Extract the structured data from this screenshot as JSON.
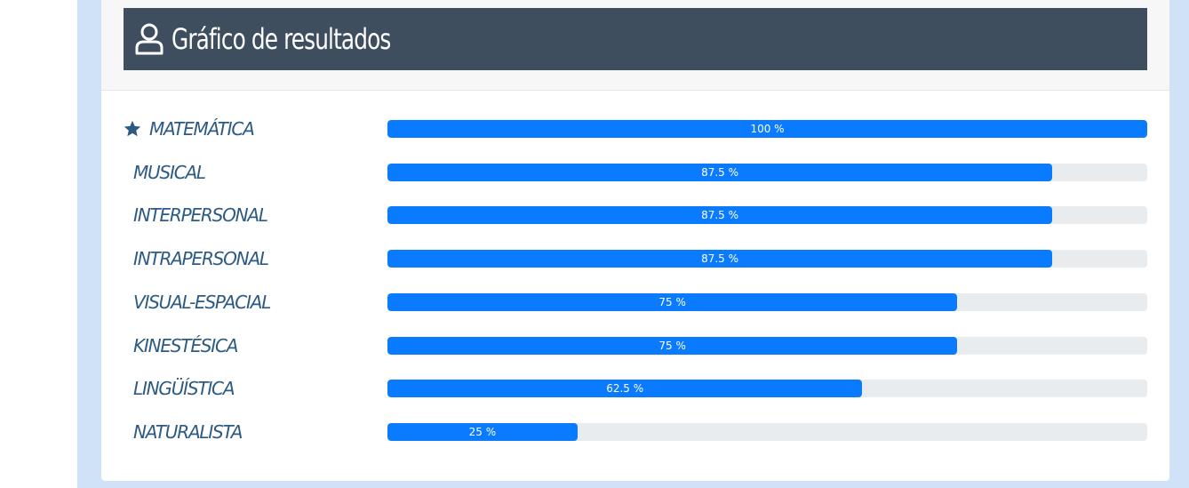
{
  "header": {
    "title": "Gráfico de resultados",
    "icon": "user-outline-icon"
  },
  "colors": {
    "bar": "#0a7bff",
    "track": "#e9ecef",
    "label": "#2c5a85",
    "title_bg": "#3e4e5e",
    "page_bg": "#cfe2f8"
  },
  "results": [
    {
      "label": "MATEMÁTICA",
      "percent": 100,
      "percent_text": "100 %",
      "starred": true
    },
    {
      "label": "MUSICAL",
      "percent": 87.5,
      "percent_text": "87.5 %",
      "starred": false
    },
    {
      "label": "INTERPERSONAL",
      "percent": 87.5,
      "percent_text": "87.5 %",
      "starred": false
    },
    {
      "label": "INTRAPERSONAL",
      "percent": 87.5,
      "percent_text": "87.5 %",
      "starred": false
    },
    {
      "label": "VISUAL-ESPACIAL",
      "percent": 75,
      "percent_text": "75 %",
      "starred": false
    },
    {
      "label": "KINESTÉSICA",
      "percent": 75,
      "percent_text": "75 %",
      "starred": false
    },
    {
      "label": "LINGÜÍSTICA",
      "percent": 62.5,
      "percent_text": "62.5 %",
      "starred": false
    },
    {
      "label": "NATURALISTA",
      "percent": 25,
      "percent_text": "25 %",
      "starred": false
    }
  ]
}
